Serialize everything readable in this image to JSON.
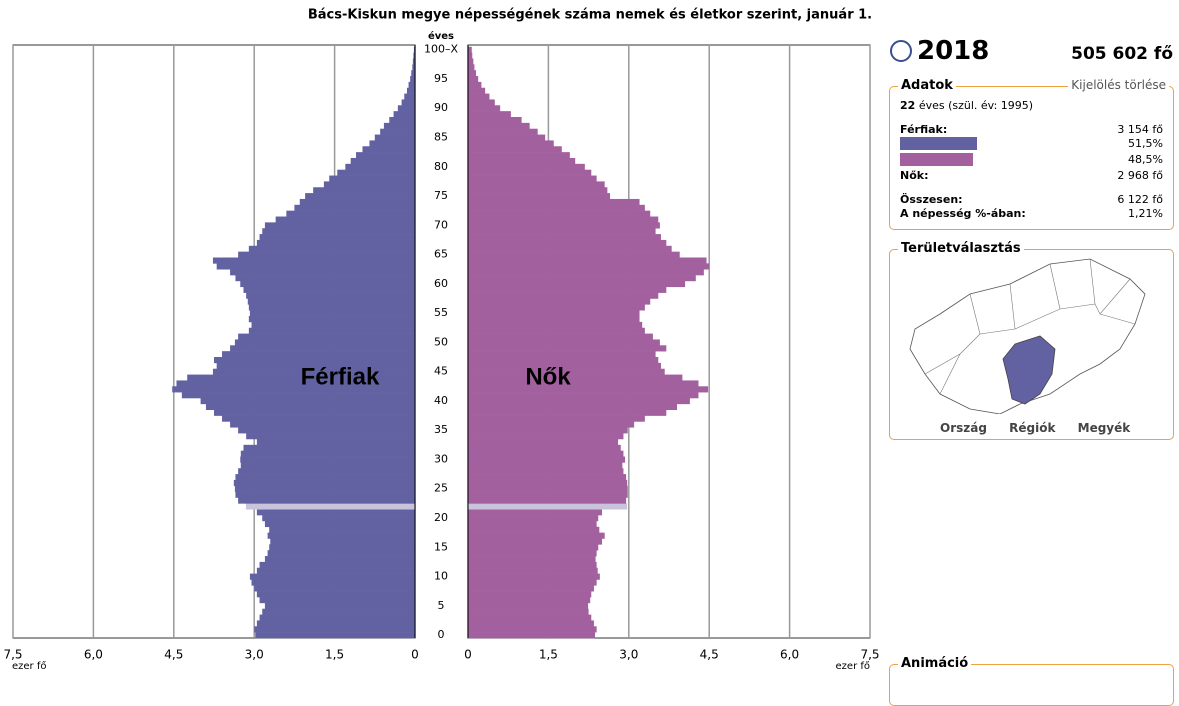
{
  "chart_data": {
    "type": "pyramid",
    "title": "Bács-Kiskun megye népességének száma nemek és életkor szerint, január 1.",
    "y_label": "éves",
    "x_label": "ezer fő",
    "categories": [
      "0",
      null,
      null,
      null,
      null,
      "5",
      null,
      null,
      null,
      null,
      "10",
      null,
      null,
      null,
      null,
      "15",
      null,
      null,
      null,
      null,
      "20",
      null,
      null,
      null,
      null,
      "25",
      null,
      null,
      null,
      null,
      "30",
      null,
      null,
      null,
      null,
      "35",
      null,
      null,
      null,
      null,
      "40",
      null,
      null,
      null,
      null,
      "45",
      null,
      null,
      null,
      null,
      "50",
      null,
      null,
      null,
      null,
      "55",
      null,
      null,
      null,
      null,
      "60",
      null,
      null,
      null,
      null,
      "65",
      null,
      null,
      null,
      null,
      "70",
      null,
      null,
      null,
      null,
      "75",
      null,
      null,
      null,
      null,
      "80",
      null,
      null,
      null,
      null,
      "85",
      null,
      null,
      null,
      null,
      "90",
      null,
      null,
      null,
      null,
      "95",
      null,
      null,
      null,
      null,
      "100–X"
    ],
    "series": [
      {
        "name": "Férfiak",
        "color": "#6262a3",
        "side": "left",
        "values": [
          2.98,
          3.0,
          2.95,
          2.9,
          2.85,
          2.8,
          2.9,
          2.95,
          3.0,
          3.05,
          3.08,
          2.95,
          2.9,
          2.8,
          2.75,
          2.72,
          2.7,
          2.75,
          2.72,
          2.8,
          2.85,
          2.95,
          3.154,
          3.3,
          3.35,
          3.36,
          3.38,
          3.35,
          3.3,
          3.25,
          3.26,
          3.25,
          3.2,
          2.95,
          3.15,
          3.3,
          3.45,
          3.6,
          3.75,
          3.9,
          4.0,
          4.35,
          4.53,
          4.45,
          4.25,
          3.77,
          3.7,
          3.75,
          3.6,
          3.45,
          3.36,
          3.3,
          3.1,
          3.05,
          3.1,
          3.08,
          3.1,
          3.12,
          3.15,
          3.2,
          3.26,
          3.35,
          3.45,
          3.7,
          3.77,
          3.3,
          3.1,
          2.95,
          2.9,
          2.85,
          2.8,
          2.6,
          2.4,
          2.25,
          2.15,
          2.05,
          1.9,
          1.7,
          1.6,
          1.45,
          1.3,
          1.2,
          1.1,
          0.98,
          0.85,
          0.75,
          0.65,
          0.58,
          0.48,
          0.4,
          0.32,
          0.25,
          0.2,
          0.15,
          0.12,
          0.09,
          0.07,
          0.05,
          0.04,
          0.03,
          0.02
        ]
      },
      {
        "name": "Nők",
        "color": "#a2609f",
        "side": "right",
        "values": [
          2.37,
          2.4,
          2.35,
          2.3,
          2.25,
          2.24,
          2.28,
          2.3,
          2.35,
          2.4,
          2.46,
          2.42,
          2.4,
          2.38,
          2.4,
          2.43,
          2.5,
          2.55,
          2.45,
          2.4,
          2.43,
          2.5,
          2.968,
          2.95,
          2.98,
          2.98,
          2.97,
          2.95,
          2.9,
          2.88,
          2.93,
          2.9,
          2.85,
          2.8,
          2.9,
          2.98,
          3.1,
          3.3,
          3.7,
          3.9,
          4.14,
          4.3,
          4.48,
          4.3,
          4.0,
          3.67,
          3.6,
          3.55,
          3.5,
          3.7,
          3.58,
          3.45,
          3.3,
          3.25,
          3.2,
          3.2,
          3.3,
          3.4,
          3.55,
          3.7,
          4.05,
          4.25,
          4.4,
          4.5,
          4.45,
          3.95,
          3.8,
          3.7,
          3.6,
          3.5,
          3.58,
          3.55,
          3.4,
          3.3,
          3.2,
          2.65,
          2.6,
          2.55,
          2.4,
          2.3,
          2.18,
          2.0,
          1.9,
          1.75,
          1.6,
          1.44,
          1.3,
          1.15,
          1.0,
          0.8,
          0.6,
          0.5,
          0.4,
          0.32,
          0.25,
          0.19,
          0.15,
          0.12,
          0.1,
          0.08,
          0.07
        ]
      }
    ],
    "highlight_index": 22,
    "highlight_color": "#c9c3dc",
    "xlim": [
      0,
      7.5
    ],
    "xticks": [
      0,
      {
        "value": 1.5,
        "label": "1,5"
      },
      {
        "value": 3,
        "label": "3,0"
      },
      {
        "value": 4.5,
        "label": "4,5"
      },
      {
        "value": 6,
        "label": "6,0"
      },
      {
        "value": 7.5,
        "label": "7,5"
      }
    ],
    "grid": true
  },
  "panel": {
    "year": "2018",
    "total": "505 602 fő",
    "adatok": "Adatok",
    "clear": "Kijelölés törlése",
    "age": "22",
    "age_text": "éves (szül. év: 1995)",
    "male_label": "Férfiak:",
    "male_count": "3 154 fő",
    "male_share": {
      "value": 51.5,
      "label": "51,5%"
    },
    "female_share": {
      "value": 48.5,
      "label": "48,5%"
    },
    "female_label": "Nők:",
    "female_count": "2 968 fő",
    "sum_label": "Összesen:",
    "sum_value": "6 122 fő",
    "pct_label": "A népesség %-ában:",
    "pct_value": "1,21%",
    "region_title": "Területválasztás",
    "links": [
      "Ország",
      "Régiók",
      "Megyék"
    ],
    "animation": "Animáció"
  }
}
